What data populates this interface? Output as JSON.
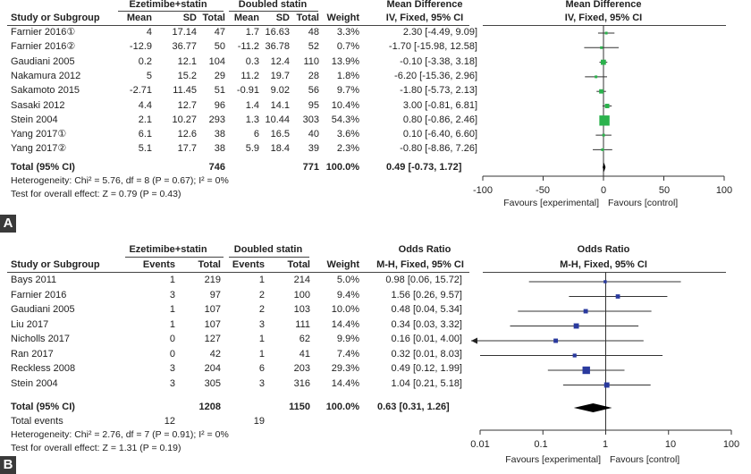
{
  "panels": [
    {
      "letter": "A",
      "group_headers": [
        "Ezetimibe+statin",
        "Doubled statin"
      ],
      "col_headers": [
        "Study or Subgroup",
        "Mean",
        "SD",
        "Total",
        "Mean",
        "SD",
        "Total",
        "Weight",
        "IV, Fixed, 95% CI"
      ],
      "effect_title": "Mean Difference",
      "plot_title": "Mean Difference",
      "plot_subtitle": "IV, Fixed, 95% CI",
      "rows": [
        [
          "Farnier 2016①",
          "4",
          "17.14",
          "47",
          "1.7",
          "16.63",
          "48",
          "3.3%",
          "2.30 [-4.49, 9.09]"
        ],
        [
          "Farnier 2016②",
          "-12.9",
          "36.77",
          "50",
          "-11.2",
          "36.78",
          "52",
          "0.7%",
          "-1.70 [-15.98, 12.58]"
        ],
        [
          "Gaudiani 2005",
          "0.2",
          "12.1",
          "104",
          "0.3",
          "12.4",
          "110",
          "13.9%",
          "-0.10 [-3.38, 3.18]"
        ],
        [
          "Nakamura 2012",
          "5",
          "15.2",
          "29",
          "11.2",
          "19.7",
          "28",
          "1.8%",
          "-6.20 [-15.36, 2.96]"
        ],
        [
          "Sakamoto 2015",
          "-2.71",
          "11.45",
          "51",
          "-0.91",
          "9.02",
          "56",
          "9.7%",
          "-1.80 [-5.73, 2.13]"
        ],
        [
          "Sasaki 2012",
          "4.4",
          "12.7",
          "96",
          "1.4",
          "14.1",
          "95",
          "10.4%",
          "3.00 [-0.81, 6.81]"
        ],
        [
          "Stein 2004",
          "2.1",
          "10.27",
          "293",
          "1.3",
          "10.44",
          "303",
          "54.3%",
          "0.80 [-0.86, 2.46]"
        ],
        [
          "Yang 2017①",
          "6.1",
          "12.6",
          "38",
          "6",
          "16.5",
          "40",
          "3.6%",
          "0.10 [-6.40, 6.60]"
        ],
        [
          "Yang 2017②",
          "5.1",
          "17.7",
          "38",
          "5.9",
          "18.4",
          "39",
          "2.3%",
          "-0.80 [-8.86, 7.26]"
        ]
      ],
      "total": {
        "label": "Total (95% CI)",
        "exp": "746",
        "ctl": "771",
        "weight": "100.0%",
        "ci": "0.49 [-0.73, 1.72]"
      },
      "heterogeneity": "Heterogeneity: Chi² = 5.76, df = 8 (P = 0.67); I² = 0%",
      "overall": "Test for overall effect: Z = 0.79 (P = 0.43)",
      "axis_ticks": [
        "-100",
        "-50",
        "0",
        "50",
        "100"
      ],
      "favours_left": "Favours [experimental]",
      "favours_right": "Favours [control]"
    },
    {
      "letter": "B",
      "group_headers": [
        "Ezetimibe+statin",
        "Doubled statin"
      ],
      "col_headers": [
        "Study or Subgroup",
        "Events",
        "Total",
        "Events",
        "Total",
        "Weight",
        "M-H, Fixed, 95% CI"
      ],
      "effect_title": "Odds Ratio",
      "plot_title": "Odds Ratio",
      "plot_subtitle": "M-H, Fixed, 95% CI",
      "rows": [
        [
          "Bays 2011",
          "1",
          "219",
          "1",
          "214",
          "5.0%",
          "0.98 [0.06, 15.72]"
        ],
        [
          "Farnier 2016",
          "3",
          "97",
          "2",
          "100",
          "9.4%",
          "1.56 [0.26, 9.57]"
        ],
        [
          "Gaudiani 2005",
          "1",
          "107",
          "2",
          "103",
          "10.0%",
          "0.48 [0.04, 5.34]"
        ],
        [
          "Liu 2017",
          "1",
          "107",
          "3",
          "111",
          "14.4%",
          "0.34 [0.03, 3.32]"
        ],
        [
          "Nicholls 2017",
          "0",
          "127",
          "1",
          "62",
          "9.9%",
          "0.16 [0.01, 4.00]"
        ],
        [
          "Ran 2017",
          "0",
          "42",
          "1",
          "41",
          "7.4%",
          "0.32 [0.01, 8.03]"
        ],
        [
          "Reckless 2008",
          "3",
          "204",
          "6",
          "203",
          "29.3%",
          "0.49 [0.12, 1.99]"
        ],
        [
          "Stein 2004",
          "3",
          "305",
          "3",
          "316",
          "14.4%",
          "1.04 [0.21, 5.18]"
        ]
      ],
      "total": {
        "label": "Total (95% CI)",
        "exp": "1208",
        "ctl": "1150",
        "weight": "100.0%",
        "ci": "0.63 [0.31, 1.26]"
      },
      "total_events": {
        "label": "Total events",
        "exp": "12",
        "ctl": "19"
      },
      "heterogeneity": "Heterogeneity: Chi² = 2.76, df = 7 (P = 0.91); I² = 0%",
      "overall": "Test for overall effect: Z = 1.31 (P = 0.19)",
      "axis_ticks": [
        "0.01",
        "0.1",
        "1",
        "10",
        "100"
      ],
      "favours_left": "Favours [experimental]",
      "favours_right": "Favours [control]"
    }
  ],
  "chart_data": [
    {
      "type": "forest",
      "scale": "linear",
      "xlim": [
        -100,
        100
      ],
      "null_value": 0,
      "studies": [
        {
          "est": 2.3,
          "lo": -4.49,
          "hi": 9.09,
          "weight": 3.3
        },
        {
          "est": -1.7,
          "lo": -15.98,
          "hi": 12.58,
          "weight": 0.7
        },
        {
          "est": -0.1,
          "lo": -3.38,
          "hi": 3.18,
          "weight": 13.9
        },
        {
          "est": -6.2,
          "lo": -15.36,
          "hi": 2.96,
          "weight": 1.8
        },
        {
          "est": -1.8,
          "lo": -5.73,
          "hi": 2.13,
          "weight": 9.7
        },
        {
          "est": 3.0,
          "lo": -0.81,
          "hi": 6.81,
          "weight": 10.4
        },
        {
          "est": 0.8,
          "lo": -0.86,
          "hi": 2.46,
          "weight": 54.3
        },
        {
          "est": 0.1,
          "lo": -6.4,
          "hi": 6.6,
          "weight": 3.6
        },
        {
          "est": -0.8,
          "lo": -8.86,
          "hi": 7.26,
          "weight": 2.3
        }
      ],
      "pooled": {
        "est": 0.49,
        "lo": -0.73,
        "hi": 1.72
      },
      "marker_color": "#2bb24c"
    },
    {
      "type": "forest",
      "scale": "log",
      "xlim": [
        0.01,
        100
      ],
      "null_value": 1,
      "studies": [
        {
          "est": 0.98,
          "lo": 0.06,
          "hi": 15.72,
          "weight": 5.0
        },
        {
          "est": 1.56,
          "lo": 0.26,
          "hi": 9.57,
          "weight": 9.4
        },
        {
          "est": 0.48,
          "lo": 0.04,
          "hi": 5.34,
          "weight": 10.0
        },
        {
          "est": 0.34,
          "lo": 0.03,
          "hi": 3.32,
          "weight": 14.4
        },
        {
          "est": 0.16,
          "lo": 0.01,
          "hi": 4.0,
          "weight": 9.9,
          "arrow_left": true
        },
        {
          "est": 0.32,
          "lo": 0.01,
          "hi": 8.03,
          "weight": 7.4
        },
        {
          "est": 0.49,
          "lo": 0.12,
          "hi": 1.99,
          "weight": 29.3
        },
        {
          "est": 1.04,
          "lo": 0.21,
          "hi": 5.18,
          "weight": 14.4
        }
      ],
      "pooled": {
        "est": 0.63,
        "lo": 0.31,
        "hi": 1.26
      },
      "marker_color": "#2a3a9e"
    }
  ]
}
